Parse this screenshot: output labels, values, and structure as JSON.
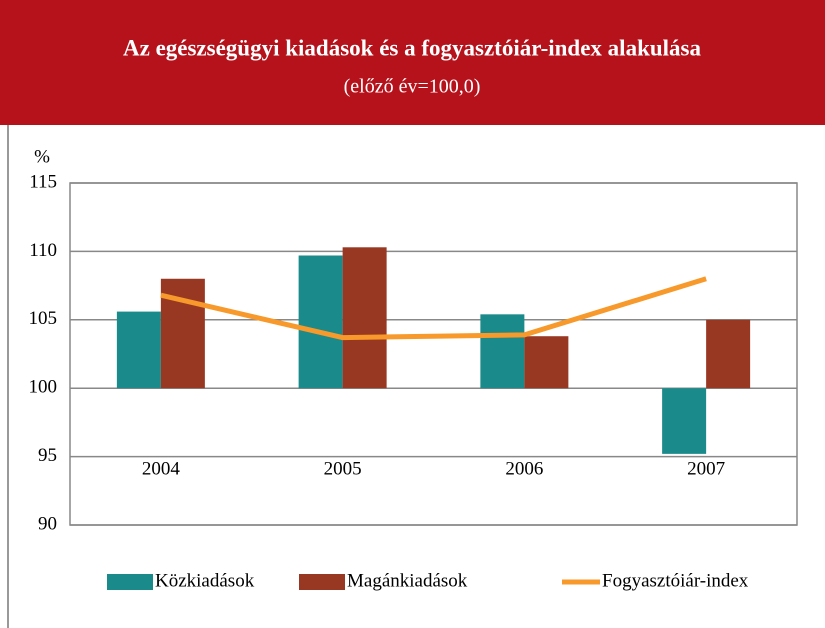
{
  "chart_data": {
    "type": "bar",
    "title": "Az egészségügyi kiadások és a fogyasztóiár-index alakulása",
    "subtitle": "(előző év=100,0)",
    "y_label": "%",
    "categories": [
      "2004",
      "2005",
      "2006",
      "2007"
    ],
    "bar_base": 100,
    "series": [
      {
        "name": "Közkiadások",
        "color": "#1a8a8a",
        "type": "bar",
        "values": [
          105.6,
          109.7,
          105.4,
          95.2
        ]
      },
      {
        "name": "Magánkiadások",
        "color": "#993822",
        "type": "bar",
        "values": [
          108.0,
          110.3,
          103.8,
          105.0
        ]
      },
      {
        "name": "Fogyasztóiár-index",
        "color": "#f7992b",
        "type": "line",
        "values": [
          106.8,
          103.7,
          103.9,
          108.0
        ]
      }
    ],
    "ylim": [
      90,
      115
    ],
    "yticks": [
      90,
      95,
      100,
      105,
      110,
      115
    ],
    "grid": true,
    "legend": "bottom"
  }
}
